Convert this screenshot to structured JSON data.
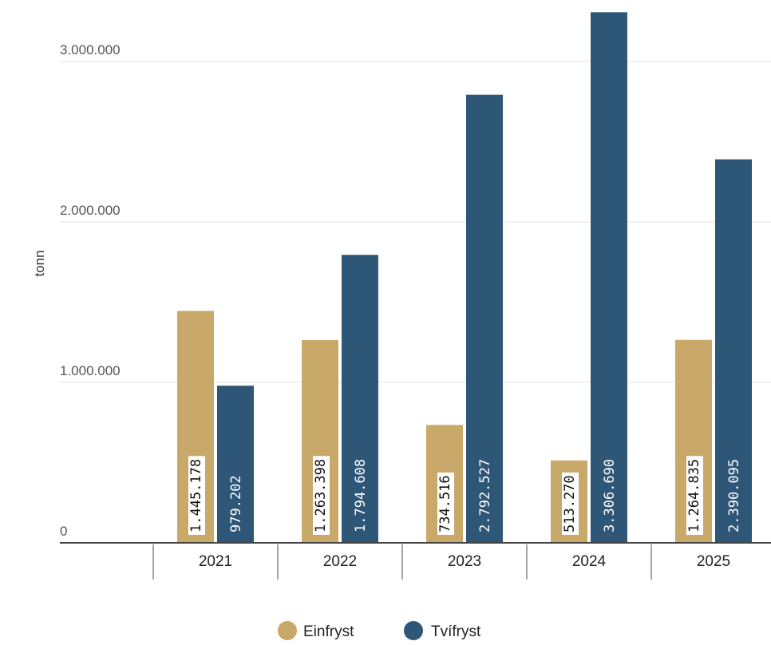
{
  "chart_data": {
    "type": "bar",
    "ylabel": "tonn",
    "ylim": [
      0,
      3300000
    ],
    "yticks": [
      {
        "value": 0,
        "label": "0"
      },
      {
        "value": 1000000,
        "label": "1.000.000"
      },
      {
        "value": 2000000,
        "label": "2.000.000"
      },
      {
        "value": 3000000,
        "label": "3.000.000"
      }
    ],
    "categories": [
      "2021",
      "2022",
      "2023",
      "2024",
      "2025"
    ],
    "series": [
      {
        "name": "Einfryst",
        "color": "#c9a96a",
        "values": [
          1445178,
          1263398,
          734516,
          513270,
          1264835
        ],
        "labels": [
          "1.445.178",
          "1.263.398",
          "734.516",
          "513.270",
          "1.264.835"
        ]
      },
      {
        "name": "Tvífryst",
        "color": "#2e5677",
        "values": [
          979202,
          1794608,
          2792527,
          3306690,
          2390095
        ],
        "labels": [
          "979.202",
          "1.794.608",
          "2.792.527",
          "3.306.690",
          "2.390.095"
        ]
      }
    ],
    "grid": true,
    "legend_position": "bottom-center"
  }
}
